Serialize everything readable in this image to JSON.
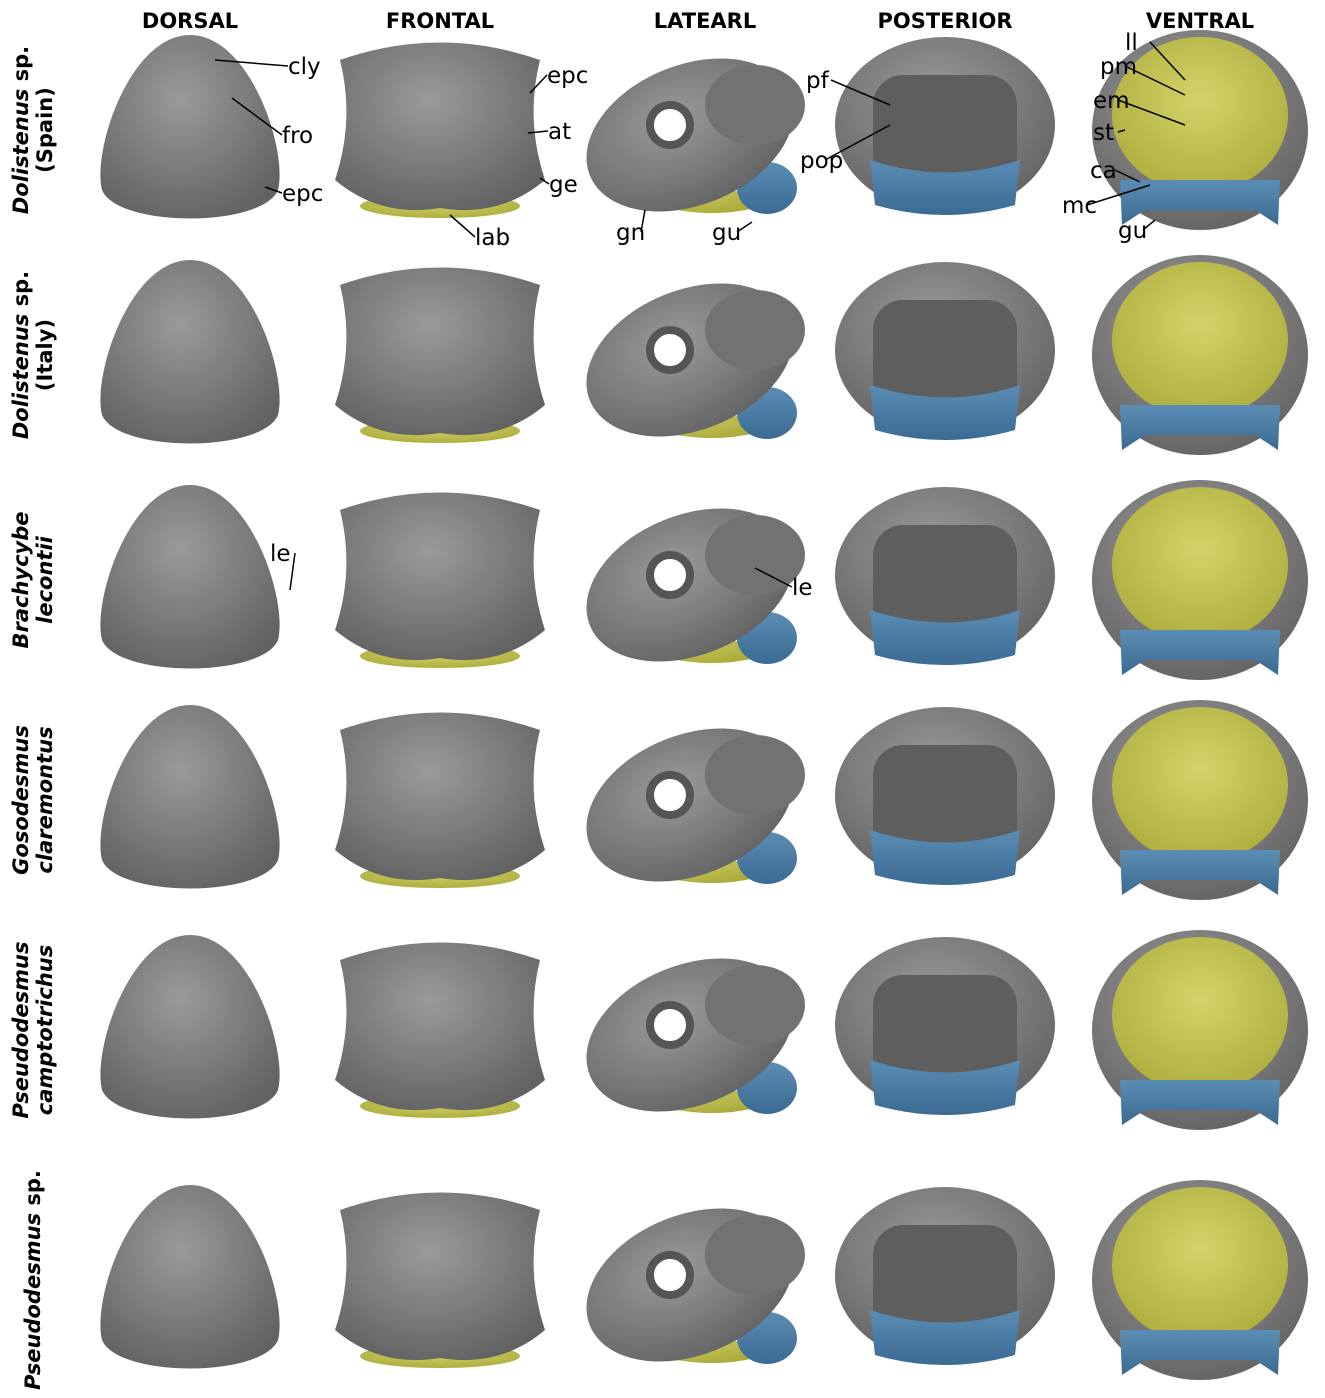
{
  "columns": [
    "DORSAL",
    "FRONTAL",
    "LATEARL",
    "POSTERIOR",
    "VENTRAL"
  ],
  "rows": [
    {
      "lines": [
        [
          {
            "text": "Dolistenus",
            "italic": true
          },
          {
            "text": " sp.",
            "italic": false
          }
        ],
        [
          {
            "text": "(Spain)",
            "italic": false
          }
        ]
      ]
    },
    {
      "lines": [
        [
          {
            "text": "Dolistenus",
            "italic": true
          },
          {
            "text": " sp.",
            "italic": false
          }
        ],
        [
          {
            "text": "(Italy)",
            "italic": false
          }
        ]
      ]
    },
    {
      "lines": [
        [
          {
            "text": "Brachycybe",
            "italic": true
          }
        ],
        [
          {
            "text": "lecontii",
            "italic": true
          }
        ]
      ]
    },
    {
      "lines": [
        [
          {
            "text": "Gosodesmus",
            "italic": true
          }
        ],
        [
          {
            "text": "claremontus",
            "italic": true
          }
        ]
      ]
    },
    {
      "lines": [
        [
          {
            "text": "Pseudodesmus",
            "italic": true
          }
        ],
        [
          {
            "text": "camptotrichus",
            "italic": true
          }
        ]
      ]
    },
    {
      "lines": [
        [
          {
            "text": "Pseudodesmus",
            "italic": true
          },
          {
            "text": " sp.",
            "italic": false
          }
        ]
      ]
    }
  ],
  "annotations": [
    "cly",
    "fro",
    "epc",
    "epc",
    "at",
    "ge",
    "lab",
    "gn",
    "gu",
    "pf",
    "pop",
    "ll",
    "pm",
    "em",
    "st",
    "ca",
    "mc",
    "gu",
    "le",
    "le"
  ]
}
